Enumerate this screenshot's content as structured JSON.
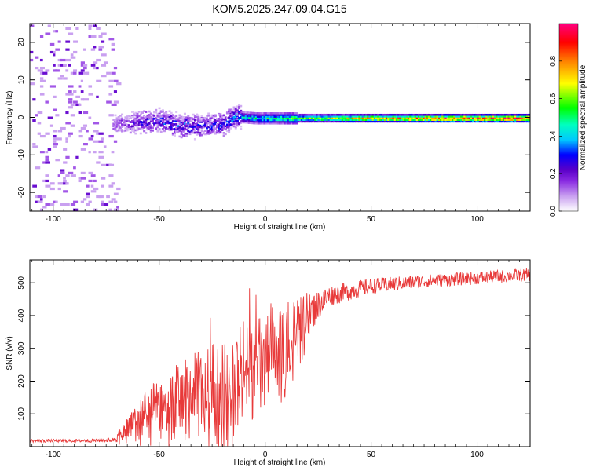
{
  "title": "KOM5.2025.247.09.04.G15",
  "chart_data": [
    {
      "type": "heatmap",
      "name": "spectrogram",
      "xlabel": "Height of straight line (km)",
      "ylabel": "Frequency (Hz)",
      "xlim": [
        -111,
        125
      ],
      "ylim": [
        -25,
        25
      ],
      "xticks": [
        -100,
        -50,
        0,
        50,
        100
      ],
      "yticks": [
        -20,
        -10,
        0,
        10,
        20
      ],
      "colorbar": {
        "label": "Normalized spectral amplitude",
        "range": [
          0,
          1
        ],
        "ticks": [
          "0.0",
          "0.2",
          "0.4",
          "0.6",
          "0.8"
        ],
        "tick_values": [
          0,
          0.2,
          0.4,
          0.6,
          0.8
        ],
        "colors": [
          "#ffffff",
          "#c9a0f0",
          "#8a2be2",
          "#5a00c8",
          "#0000ff",
          "#00c8ff",
          "#00ffc0",
          "#00ff00",
          "#ffff00",
          "#ff8000",
          "#ff0000",
          "#ff0080"
        ]
      },
      "features": {
        "noise_x_range": [
          -111,
          -70
        ],
        "signal_track": [
          {
            "x": -70,
            "f": -1.5,
            "amp": 0.15
          },
          {
            "x": -60,
            "f": -1.0,
            "amp": 0.25
          },
          {
            "x": -50,
            "f": -0.5,
            "amp": 0.3
          },
          {
            "x": -40,
            "f": -2.0,
            "amp": 0.3
          },
          {
            "x": -30,
            "f": -2.0,
            "amp": 0.3
          },
          {
            "x": -20,
            "f": -1.5,
            "amp": 0.3
          },
          {
            "x": -15,
            "f": 0.5,
            "amp": 0.35
          },
          {
            "x": -5,
            "f": 0.0,
            "amp": 0.45
          },
          {
            "x": 5,
            "f": 0.0,
            "amp": 0.5
          },
          {
            "x": 20,
            "f": 0.0,
            "amp": 0.6
          },
          {
            "x": 40,
            "f": 0.0,
            "amp": 0.7
          },
          {
            "x": 60,
            "f": 0.0,
            "amp": 0.8
          },
          {
            "x": 80,
            "f": 0.0,
            "amp": 0.85
          },
          {
            "x": 100,
            "f": 0.0,
            "amp": 0.9
          },
          {
            "x": 125,
            "f": 0.0,
            "amp": 0.9
          }
        ]
      }
    },
    {
      "type": "line",
      "name": "snr",
      "xlabel": "Height of straight line (km)",
      "ylabel": "SNR (v/v)",
      "xlim": [
        -111,
        125
      ],
      "ylim": [
        0,
        570
      ],
      "xticks": [
        -100,
        -50,
        0,
        50,
        100
      ],
      "yticks": [
        100,
        200,
        300,
        400,
        500
      ],
      "color": "#e83a3a",
      "series_envelope": [
        {
          "x": -111,
          "y": 18,
          "spread": 6
        },
        {
          "x": -90,
          "y": 18,
          "spread": 6
        },
        {
          "x": -72,
          "y": 20,
          "spread": 8
        },
        {
          "x": -65,
          "y": 50,
          "spread": 40
        },
        {
          "x": -55,
          "y": 100,
          "spread": 80
        },
        {
          "x": -45,
          "y": 130,
          "spread": 110
        },
        {
          "x": -35,
          "y": 150,
          "spread": 130
        },
        {
          "x": -25,
          "y": 170,
          "spread": 150
        },
        {
          "x": -18,
          "y": 150,
          "spread": 170
        },
        {
          "x": -10,
          "y": 230,
          "spread": 160
        },
        {
          "x": 0,
          "y": 250,
          "spread": 150
        },
        {
          "x": 10,
          "y": 300,
          "spread": 120
        },
        {
          "x": 20,
          "y": 400,
          "spread": 80
        },
        {
          "x": 30,
          "y": 460,
          "spread": 40
        },
        {
          "x": 50,
          "y": 490,
          "spread": 30
        },
        {
          "x": 75,
          "y": 505,
          "spread": 25
        },
        {
          "x": 100,
          "y": 515,
          "spread": 25
        },
        {
          "x": 125,
          "y": 525,
          "spread": 25
        }
      ]
    }
  ]
}
